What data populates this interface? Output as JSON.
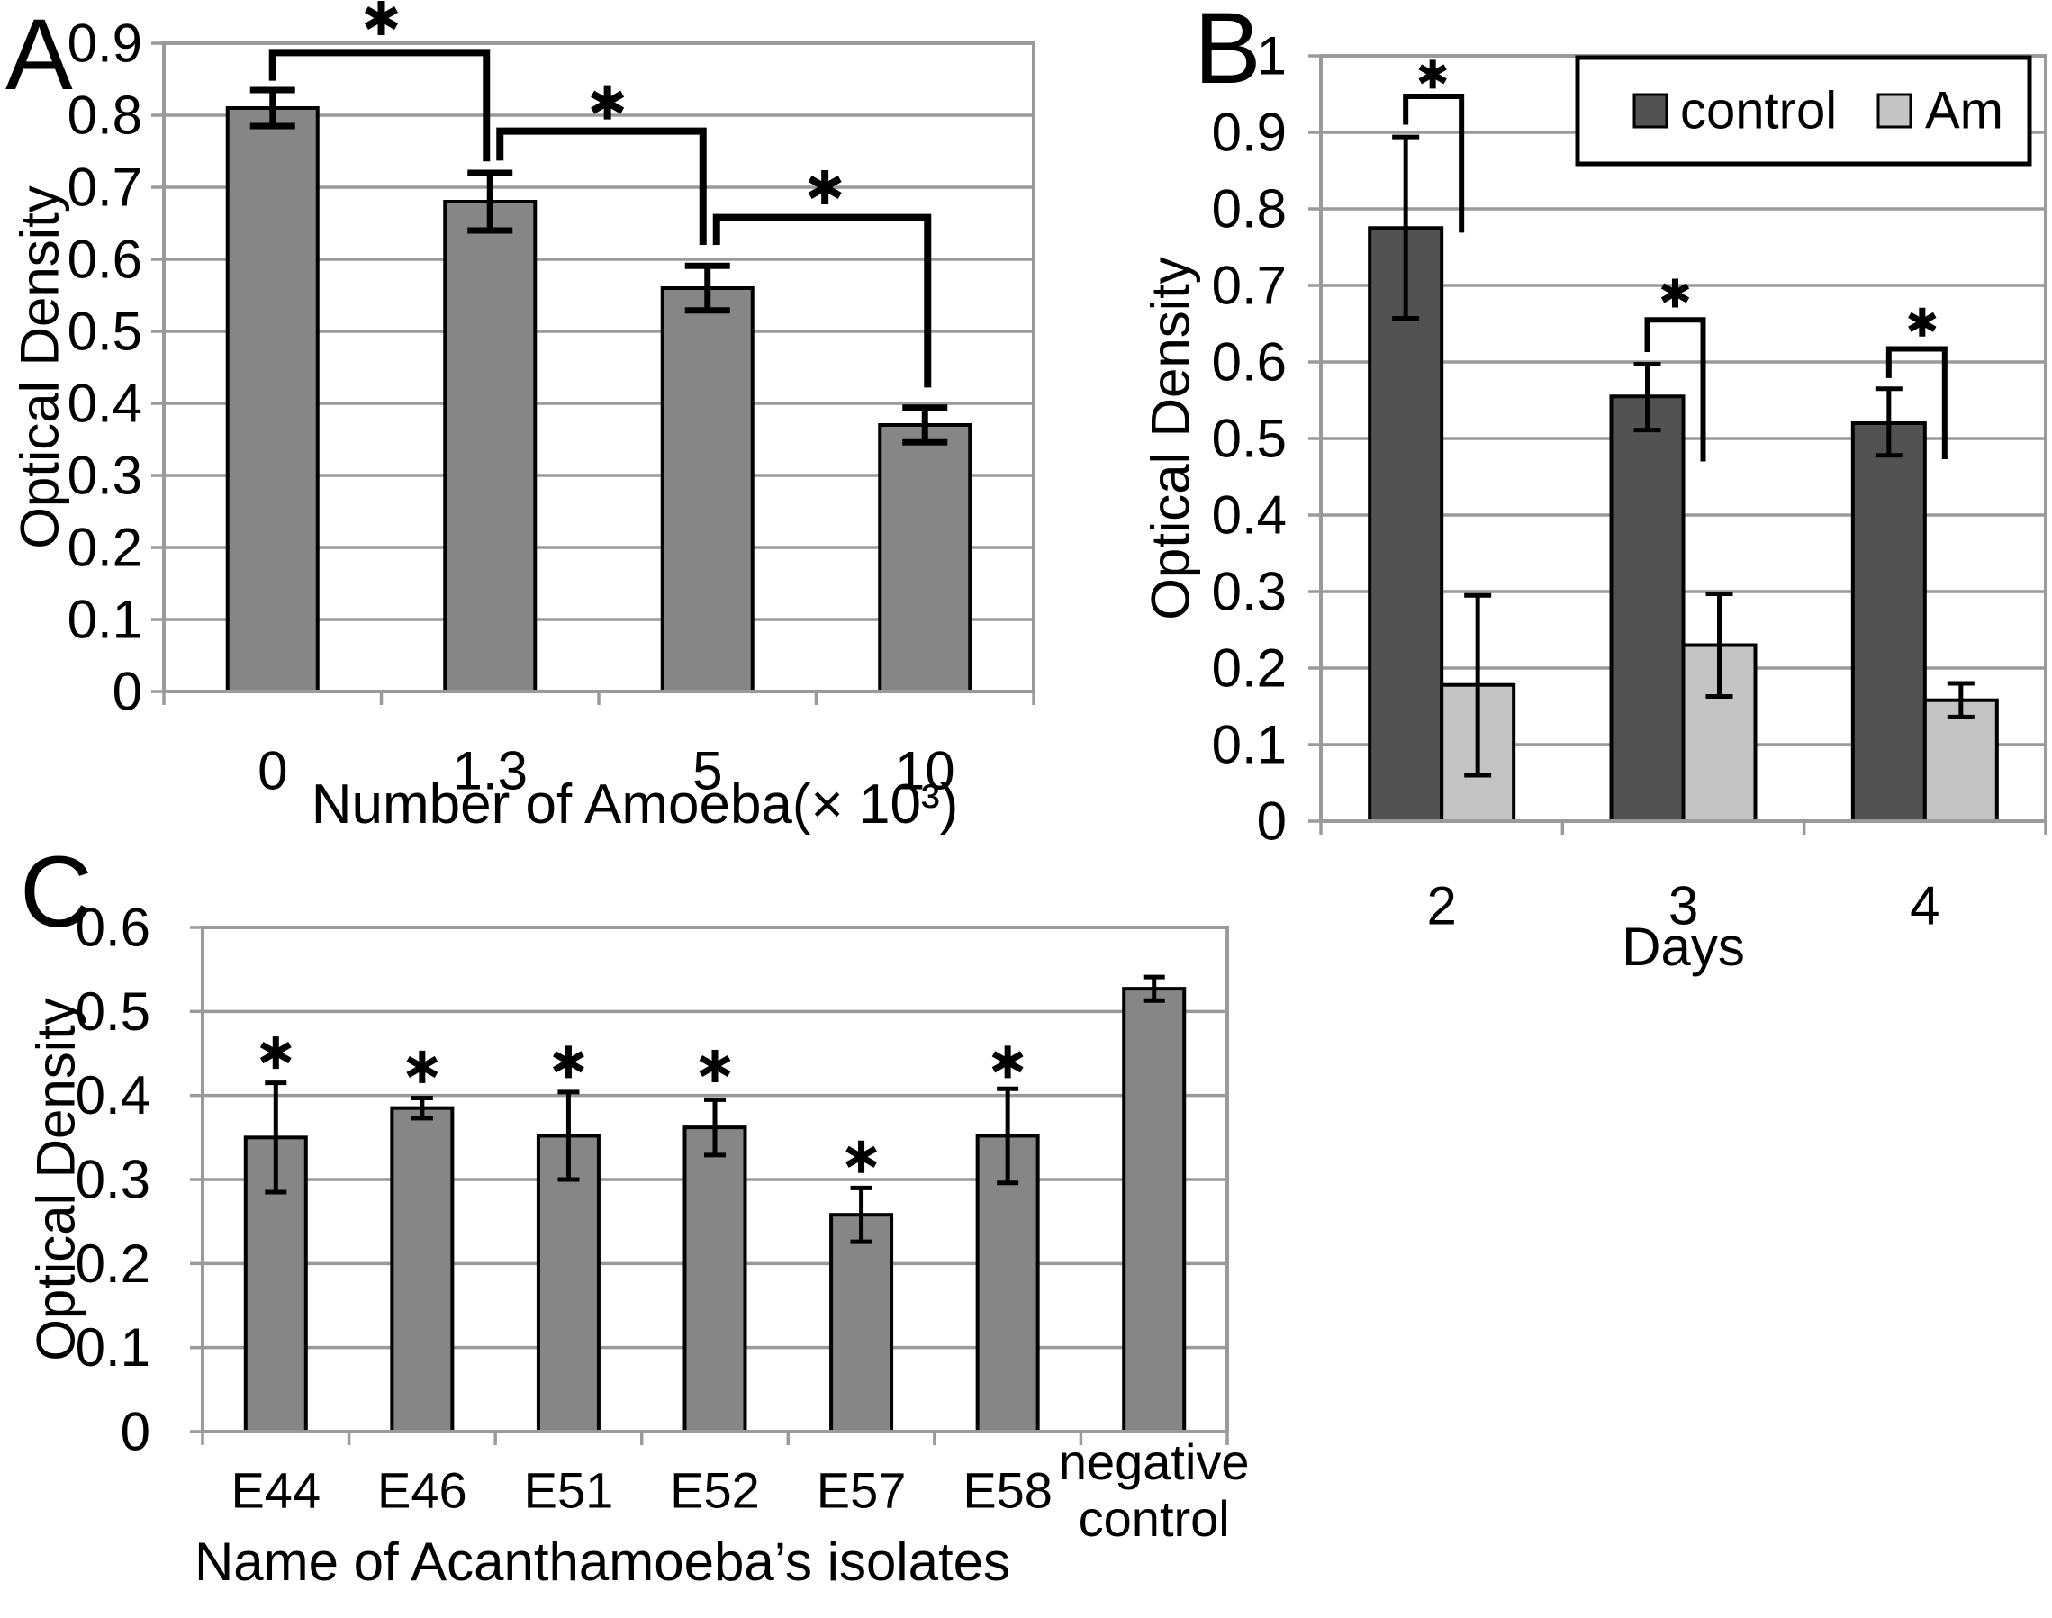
{
  "figure_title": "",
  "chart_data": [
    {
      "panel_label": "A",
      "type": "bar",
      "xlabel": "Number of Amoeba(× 10³)",
      "ylabel": "Optical Density",
      "ylim": [
        0,
        0.9
      ],
      "ystep": 0.1,
      "grid": true,
      "ytick_labels": [
        "0",
        "0.1",
        "0.2",
        "0.3",
        "0.4",
        "0.5",
        "0.6",
        "0.7",
        "0.8",
        "0.9"
      ],
      "categories": [
        "0",
        "1.3",
        "5",
        "10"
      ],
      "series": [
        {
          "name": "optical-density",
          "color": "#868686",
          "values": [
            0.81,
            0.68,
            0.56,
            0.37
          ],
          "errors": [
            [
              0.025,
              0.025
            ],
            [
              0.04,
              0.04
            ],
            [
              0.031,
              0.031
            ],
            [
              0.024,
              0.024
            ]
          ]
        }
      ],
      "significance": {
        "brackets": [
          {
            "from_cat": 0,
            "from_series": 0,
            "from_dx": 0,
            "from_drop_y": 0.848,
            "to_cat": 1,
            "to_series": 0,
            "to_dx": -4,
            "to_drop_y": 0.736,
            "bar_y": 0.887
          },
          {
            "from_cat": 1,
            "from_series": 0,
            "from_dx": 11,
            "from_drop_y": 0.737,
            "to_cat": 2,
            "to_series": 0,
            "to_dx": -5,
            "to_drop_y": 0.62,
            "bar_y": 0.778
          },
          {
            "from_cat": 2,
            "from_series": 0,
            "from_dx": 10,
            "from_drop_y": 0.62,
            "to_cat": 3,
            "to_series": 0,
            "to_dx": 3,
            "to_drop_y": 0.422,
            "bar_y": 0.658
          }
        ],
        "stars": [
          {
            "cat": 0.5,
            "dx": 0,
            "y": 0.935,
            "symbol": "*"
          },
          {
            "cat": 1.54,
            "dx": 0,
            "y": 0.818,
            "symbol": "*"
          },
          {
            "cat": 2.54,
            "dx": 0,
            "y": 0.7,
            "symbol": "*"
          }
        ]
      }
    },
    {
      "panel_label": "B",
      "type": "bar",
      "xlabel": "Days",
      "ylabel": "Optical Density",
      "ylim": [
        0,
        1
      ],
      "ystep": 0.1,
      "grid": true,
      "ytick_labels": [
        "0",
        "0.1",
        "0.2",
        "0.3",
        "0.4",
        "0.5",
        "0.6",
        "0.7",
        "0.8",
        "0.9",
        "1"
      ],
      "categories": [
        "2",
        "3",
        "4"
      ],
      "series": [
        {
          "name": "control",
          "color": "#525252",
          "values": [
            0.775,
            0.555,
            0.52
          ],
          "errors": [
            [
              0.118,
              0.119
            ],
            [
              0.044,
              0.042
            ],
            [
              0.042,
              0.045
            ]
          ]
        },
        {
          "name": "Am",
          "color": "#c4c4c4",
          "values": [
            0.178,
            0.23,
            0.158
          ],
          "errors": [
            [
              0.118,
              0.117
            ],
            [
              0.067,
              0.067
            ],
            [
              0.022,
              0.022
            ]
          ]
        }
      ],
      "legend": {
        "items": [
          {
            "label": "control",
            "series": 0
          },
          {
            "label": "Am",
            "series": 1
          }
        ],
        "position": "top-right"
      },
      "significance": {
        "brackets": [
          {
            "from_cat": 0,
            "from_series": 0,
            "from_dx": 0,
            "from_drop_y": 0.91,
            "to_cat": 0,
            "to_series": 0,
            "to_dx": 62,
            "to_drop_y": 0.769,
            "bar_y": 0.947
          },
          {
            "from_cat": 1,
            "from_series": 0,
            "from_dx": 0,
            "from_drop_y": 0.613,
            "to_cat": 1,
            "to_series": 0,
            "to_dx": 62,
            "to_drop_y": 0.47,
            "bar_y": 0.655
          },
          {
            "from_cat": 2,
            "from_series": 0,
            "from_dx": 0,
            "from_drop_y": 0.579,
            "to_cat": 2,
            "to_series": 0,
            "to_dx": 62,
            "to_drop_y": 0.473,
            "bar_y": 0.617
          }
        ],
        "stars": [
          {
            "cat": 0,
            "series": 0,
            "dx": 30,
            "y": 0.976,
            "symbol": "*"
          },
          {
            "cat": 1,
            "series": 0,
            "dx": 31,
            "y": 0.69,
            "symbol": "*"
          },
          {
            "cat": 2,
            "series": 0,
            "dx": 37,
            "y": 0.652,
            "symbol": "*"
          }
        ]
      }
    },
    {
      "panel_label": "C",
      "type": "bar",
      "xlabel": "Name of Acanthamoeba’s isolates",
      "ylabel": "Optical Density",
      "ylim": [
        0,
        0.6
      ],
      "ystep": 0.1,
      "grid": true,
      "ytick_labels": [
        "0",
        "0.1",
        "0.2",
        "0.3",
        "0.4",
        "0.5",
        "0.6"
      ],
      "categories": [
        "E44",
        "E46",
        "E51",
        "E52",
        "E57",
        "E58",
        "negative\ncontrol"
      ],
      "series": [
        {
          "name": "optical-density",
          "color": "#868686",
          "values": [
            0.35,
            0.385,
            0.352,
            0.362,
            0.258,
            0.352,
            0.527
          ],
          "errors": [
            [
              0.065,
              0.065
            ],
            [
              0.012,
              0.012
            ],
            [
              0.052,
              0.052
            ],
            [
              0.033,
              0.033
            ],
            [
              0.032,
              0.032
            ],
            [
              0.056,
              0.056
            ],
            [
              0.014,
              0.014
            ]
          ]
        }
      ],
      "significance": {
        "brackets": [],
        "stars": [
          {
            "cat": 0,
            "dx": 0,
            "y": 0.451,
            "symbol": "*"
          },
          {
            "cat": 1,
            "dx": 0,
            "y": 0.434,
            "symbol": "*"
          },
          {
            "cat": 2,
            "dx": 0,
            "y": 0.44,
            "symbol": "*"
          },
          {
            "cat": 3,
            "dx": 0,
            "y": 0.435,
            "symbol": "*"
          },
          {
            "cat": 4,
            "dx": 0,
            "y": 0.327,
            "symbol": "*"
          },
          {
            "cat": 5,
            "dx": 0,
            "y": 0.44,
            "symbol": "*"
          }
        ]
      }
    }
  ]
}
